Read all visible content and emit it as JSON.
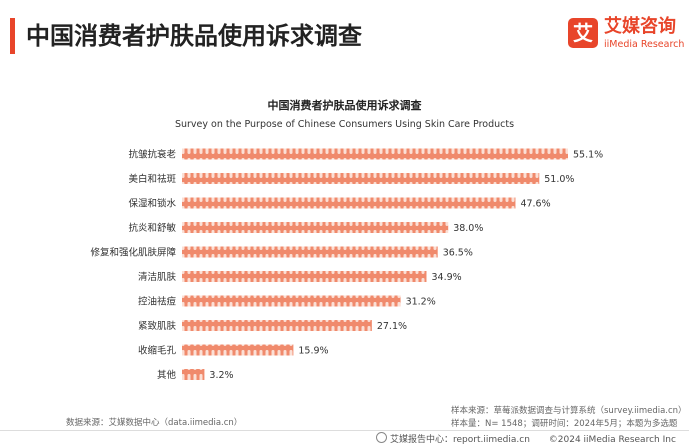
{
  "header": {
    "title": "中国消费者护肤品使用诉求调查",
    "accent_color": "#e8452a"
  },
  "logo": {
    "mark": "艾",
    "name_cn": "艾媒咨询",
    "name_en": "iiMedia Research",
    "color": "#e8452a"
  },
  "chart_data": {
    "type": "bar",
    "orientation": "horizontal",
    "title": "中国消费者护肤品使用诉求调查",
    "subtitle": "Survey on the Purpose of Chinese Consumers Using Skin Care Products",
    "categories": [
      "抗皱抗衰老",
      "美白和祛斑",
      "保湿和锁水",
      "抗炎和舒敏",
      "修复和强化肌肤屏障",
      "清洁肌肤",
      "控油祛痘",
      "紧致肌肤",
      "收缩毛孔",
      "其他"
    ],
    "values": [
      55.1,
      51.0,
      47.6,
      38.0,
      36.5,
      34.9,
      31.2,
      27.1,
      15.9,
      3.2
    ],
    "value_labels": [
      "55.1%",
      "51.0%",
      "47.6%",
      "38.0%",
      "36.5%",
      "34.9%",
      "31.2%",
      "27.1%",
      "15.9%",
      "3.2%"
    ],
    "unit": "%",
    "xlim": [
      0,
      60
    ],
    "grid": false,
    "legend": "none",
    "bar_color": "#f08a6c",
    "bar_light_color": "#fbe0d6"
  },
  "footer": {
    "source_left": "数据来源：艾媒数据中心（data.iimedia.cn）",
    "source_right_1": "样本来源：草莓派数据调查与计算系统（survey.iimedia.cn）",
    "source_right_2": "样本量：N= 1548；调研时间：2024年5月；本题为多选题",
    "report_center": "艾媒报告中心：report.iimedia.cn",
    "copyright": "©2024  iiMedia Research  Inc"
  }
}
